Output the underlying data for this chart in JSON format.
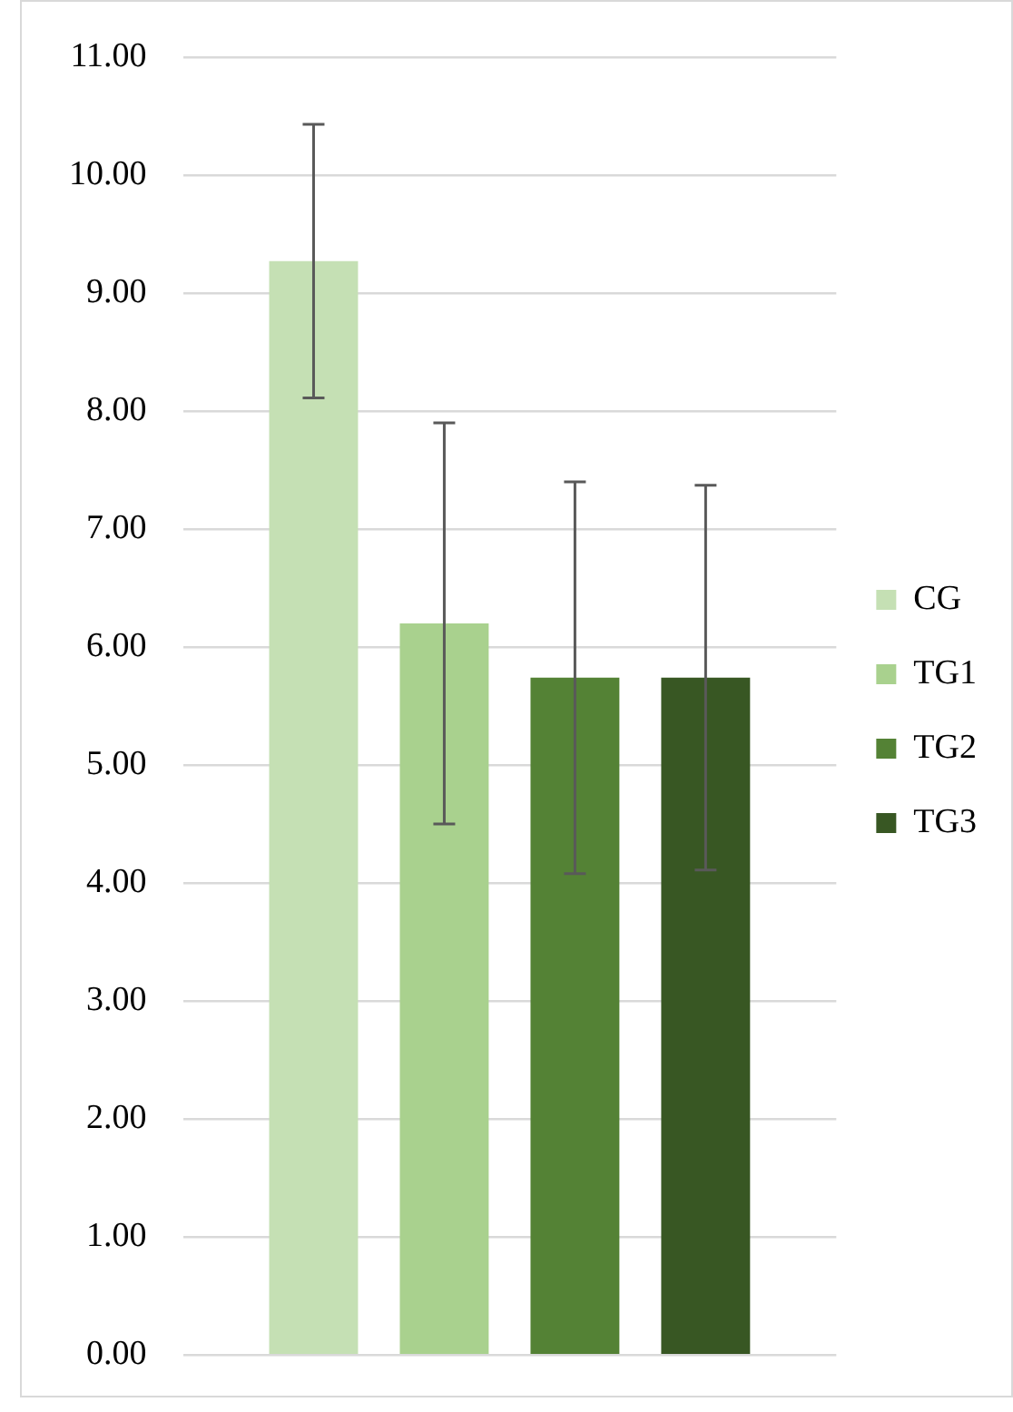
{
  "chart_data": {
    "type": "bar",
    "categories": [
      null
    ],
    "series": [
      {
        "name": "CG",
        "color": "#c5e0b4",
        "values": [
          9.27
        ],
        "errors": [
          1.16
        ]
      },
      {
        "name": "TG1",
        "color": "#a9d18e",
        "values": [
          6.2
        ],
        "errors": [
          1.7
        ]
      },
      {
        "name": "TG2",
        "color": "#548235",
        "values": [
          5.74
        ],
        "errors": [
          1.66
        ]
      },
      {
        "name": "TG3",
        "color": "#385723",
        "values": [
          5.74
        ],
        "errors": [
          1.63
        ]
      }
    ],
    "ylim": [
      0,
      11
    ],
    "yticks": [
      {
        "value": 0,
        "label": "0.00"
      },
      {
        "value": 1,
        "label": "1.00"
      },
      {
        "value": 2,
        "label": "2.00"
      },
      {
        "value": 3,
        "label": "3.00"
      },
      {
        "value": 4,
        "label": "4.00"
      },
      {
        "value": 5,
        "label": "5.00"
      },
      {
        "value": 6,
        "label": "6.00"
      },
      {
        "value": 7,
        "label": "7.00"
      },
      {
        "value": 8,
        "label": "8.00"
      },
      {
        "value": 9,
        "label": "9.00"
      },
      {
        "value": 10,
        "label": "10.00"
      },
      {
        "value": 11,
        "label": "11.00"
      }
    ],
    "grid": "y",
    "legend": "right"
  }
}
